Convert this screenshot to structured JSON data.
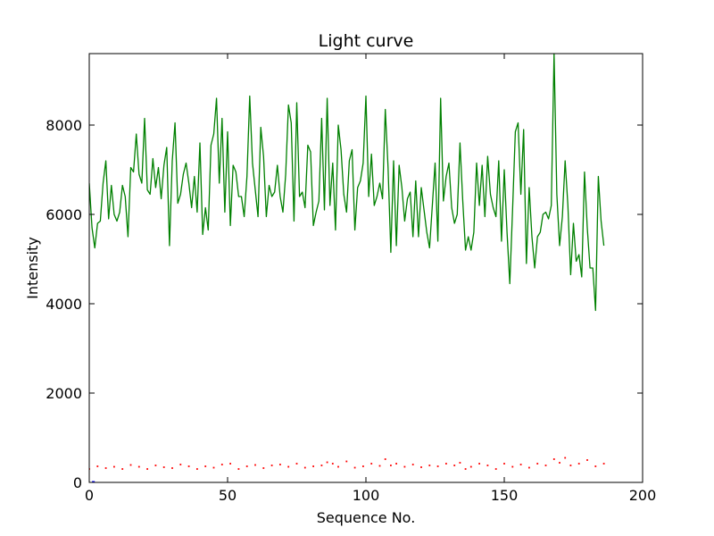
{
  "chart_data": {
    "type": "line",
    "title": "Light curve",
    "xlabel": "Sequence No.",
    "ylabel": "Intensity",
    "xlim": [
      0,
      200
    ],
    "ylim": [
      0,
      9600
    ],
    "xticks": [
      0,
      50,
      100,
      150,
      200
    ],
    "yticks": [
      0,
      2000,
      4000,
      6000,
      8000
    ],
    "grid": false,
    "legend": "none",
    "series": [
      {
        "style": "solid",
        "color": "#008000",
        "x": [
          0,
          1,
          2,
          3,
          4,
          5,
          6,
          7,
          8,
          9,
          10,
          11,
          12,
          13,
          14,
          15,
          16,
          17,
          18,
          19,
          20,
          21,
          22,
          23,
          24,
          25,
          26,
          27,
          28,
          29,
          30,
          31,
          32,
          33,
          34,
          35,
          36,
          37,
          38,
          39,
          40,
          41,
          42,
          43,
          44,
          45,
          46,
          47,
          48,
          49,
          50,
          51,
          52,
          53,
          54,
          55,
          56,
          57,
          58,
          59,
          60,
          61,
          62,
          63,
          64,
          65,
          66,
          67,
          68,
          69,
          70,
          71,
          72,
          73,
          74,
          75,
          76,
          77,
          78,
          79,
          80,
          81,
          82,
          83,
          84,
          85,
          86,
          87,
          88,
          89,
          90,
          91,
          92,
          93,
          94,
          95,
          96,
          97,
          98,
          99,
          100,
          101,
          102,
          103,
          104,
          105,
          106,
          107,
          108,
          109,
          110,
          111,
          112,
          113,
          114,
          115,
          116,
          117,
          118,
          119,
          120,
          121,
          122,
          123,
          124,
          125,
          126,
          127,
          128,
          129,
          130,
          131,
          132,
          133,
          134,
          135,
          136,
          137,
          138,
          139,
          140,
          141,
          142,
          143,
          144,
          145,
          146,
          147,
          148,
          149,
          150,
          151,
          152,
          153,
          154,
          155,
          156,
          157,
          158,
          159,
          160,
          161,
          162,
          163,
          164,
          165,
          166,
          167,
          168,
          169,
          170,
          171,
          172,
          173,
          174,
          175,
          176,
          177,
          178,
          179,
          180,
          181,
          182,
          183,
          184,
          185,
          186
        ],
        "values": [
          6700,
          5700,
          5250,
          5800,
          5850,
          6700,
          7200,
          5900,
          6650,
          6000,
          5850,
          6050,
          6650,
          6400,
          5500,
          7050,
          6950,
          7800,
          6900,
          6700,
          8150,
          6550,
          6450,
          7250,
          6600,
          7050,
          6350,
          7100,
          7500,
          5300,
          7200,
          8050,
          6250,
          6450,
          6900,
          7150,
          6700,
          6150,
          6850,
          6050,
          7600,
          5550,
          6150,
          5650,
          7550,
          7800,
          8600,
          6700,
          8150,
          6050,
          7850,
          5750,
          7100,
          6950,
          6400,
          6400,
          5950,
          6850,
          8650,
          7150,
          6550,
          5950,
          7950,
          7300,
          5950,
          6650,
          6400,
          6500,
          7100,
          6400,
          6050,
          6900,
          8450,
          8050,
          5850,
          8500,
          6400,
          6500,
          6150,
          7550,
          7400,
          5750,
          6050,
          6300,
          8150,
          6100,
          8600,
          6200,
          7150,
          5650,
          8000,
          7450,
          6450,
          6050,
          7200,
          7450,
          5650,
          6600,
          6750,
          7150,
          8650,
          6400,
          7350,
          6200,
          6400,
          6700,
          6350,
          8350,
          7050,
          5150,
          7200,
          5300,
          7100,
          6600,
          5850,
          6350,
          6500,
          5500,
          6750,
          5500,
          6600,
          6100,
          5600,
          5250,
          6200,
          7150,
          5400,
          8600,
          6300,
          6850,
          7150,
          6150,
          5800,
          6000,
          7600,
          6300,
          5200,
          5500,
          5200,
          5600,
          7150,
          6200,
          7100,
          5950,
          7300,
          6450,
          6150,
          5950,
          7200,
          5400,
          7000,
          5600,
          4450,
          6100,
          7850,
          8050,
          6450,
          7900,
          4900,
          6600,
          5500,
          4800,
          5500,
          5600,
          6000,
          6050,
          5900,
          6200,
          9600,
          6450,
          5300,
          5950,
          7200,
          6200,
          4650,
          5800,
          4950,
          5100,
          4600,
          6950,
          5700,
          4800,
          4800,
          3850,
          6850,
          5850,
          5300
        ]
      },
      {
        "style": "dotted",
        "color": "#ff0000",
        "x": [
          0,
          3,
          6,
          9,
          12,
          15,
          18,
          21,
          24,
          27,
          30,
          33,
          36,
          39,
          42,
          45,
          48,
          51,
          54,
          57,
          60,
          63,
          66,
          69,
          72,
          75,
          78,
          81,
          84,
          86,
          88,
          90,
          93,
          96,
          99,
          102,
          105,
          107,
          109,
          111,
          114,
          117,
          120,
          123,
          126,
          129,
          132,
          134,
          136,
          138,
          141,
          144,
          147,
          150,
          153,
          156,
          159,
          162,
          165,
          168,
          170,
          172,
          174,
          177,
          180,
          183,
          186
        ],
        "values": [
          300,
          360,
          320,
          350,
          300,
          390,
          350,
          300,
          380,
          340,
          320,
          400,
          360,
          300,
          360,
          330,
          400,
          420,
          300,
          360,
          390,
          320,
          380,
          400,
          350,
          420,
          330,
          360,
          380,
          450,
          420,
          350,
          470,
          330,
          360,
          420,
          370,
          520,
          380,
          420,
          350,
          400,
          340,
          380,
          360,
          420,
          380,
          440,
          300,
          350,
          420,
          380,
          300,
          420,
          350,
          400,
          330,
          420,
          380,
          520,
          440,
          550,
          380,
          420,
          500,
          360,
          420
        ]
      },
      {
        "style": "solid",
        "color": "#0000ff",
        "x": [
          1,
          2
        ],
        "values": [
          0,
          0
        ]
      }
    ]
  }
}
